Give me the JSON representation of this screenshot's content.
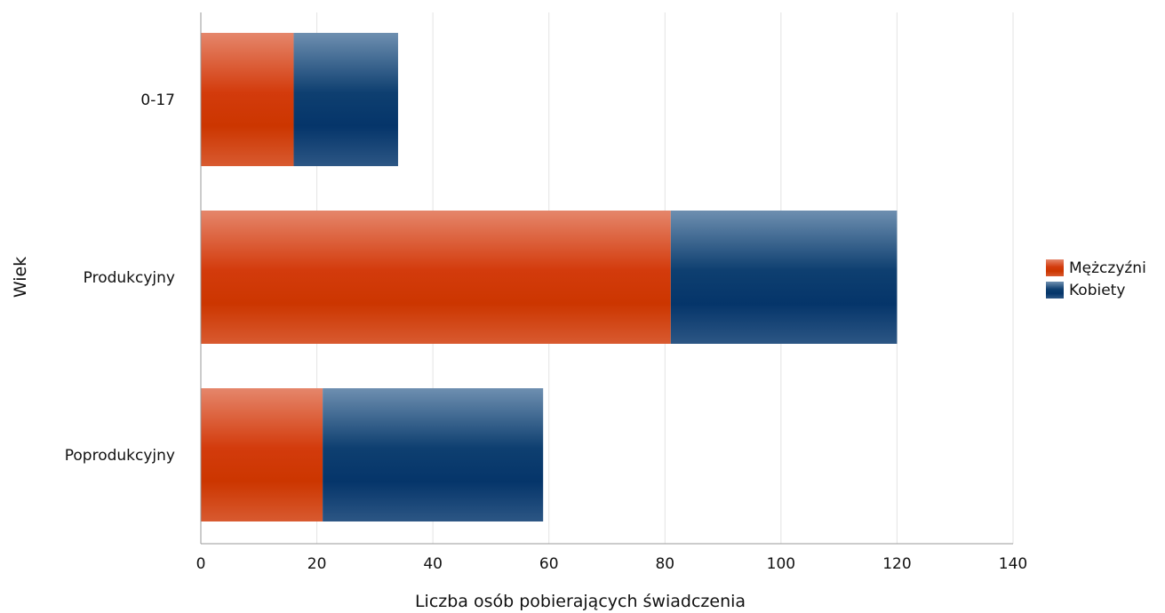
{
  "chart_data": {
    "type": "bar",
    "orientation": "horizontal",
    "stacked": true,
    "categories": [
      "0-17",
      "Produkcyjny",
      "Poprodukcyjny"
    ],
    "series": [
      {
        "name": "Mężczyźni",
        "values": [
          16,
          81,
          21
        ],
        "color": "#d23a0a"
      },
      {
        "name": "Kobiety",
        "values": [
          18,
          39,
          38
        ],
        "color": "#0b3c6e"
      }
    ],
    "xlabel": "Liczba osób pobierających świadczenia",
    "ylabel": "Wiek",
    "xlim": [
      0,
      140
    ],
    "xticks": [
      0,
      20,
      40,
      60,
      80,
      100,
      120,
      140
    ],
    "grid": "vertical",
    "legend_position": "right"
  }
}
